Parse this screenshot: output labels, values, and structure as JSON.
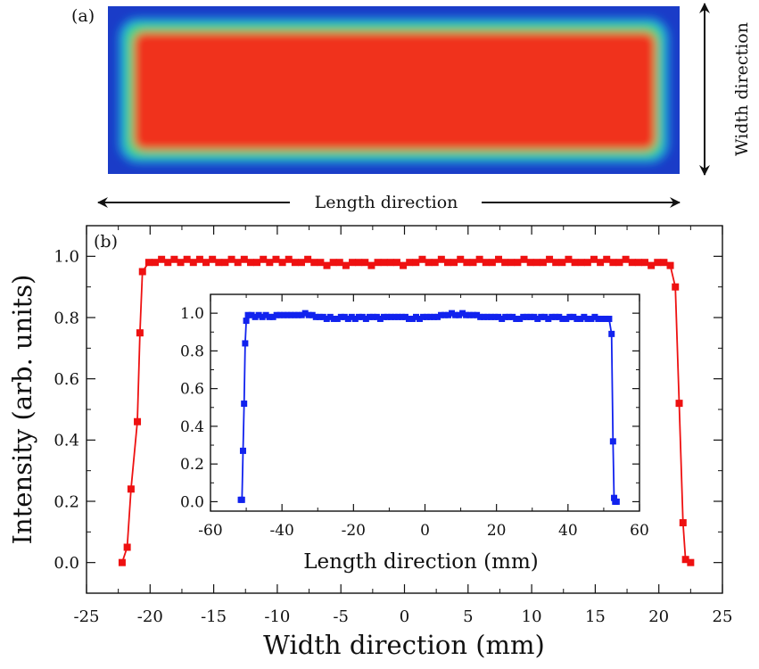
{
  "panel_a": {
    "label": "(a)",
    "length_direction": "Length direction",
    "width_direction": "Width direction",
    "colors": {
      "core": "#f0321c",
      "halo": "#3fd87a",
      "edge": "#1aa5d8",
      "background": "#1a3cc8"
    }
  },
  "chart_data": [
    {
      "type": "line",
      "panel_label": "(b)",
      "title": "",
      "xlabel": "Width direction (mm)",
      "ylabel": "Intensity (arb. units)",
      "xlim": [
        -25,
        25
      ],
      "ylim": [
        -0.1,
        1.1
      ],
      "xticks": [
        -25,
        -20,
        -15,
        -10,
        -5,
        0,
        5,
        10,
        15,
        20,
        25
      ],
      "yticks": [
        0.0,
        0.2,
        0.4,
        0.6,
        0.8,
        1.0
      ],
      "ytick_labels": [
        "0.0",
        "0.2",
        "0.4",
        "0.6",
        "0.8",
        "1.0"
      ],
      "marker": "square",
      "color": "#ee1111",
      "series": [
        {
          "x": [
            -22.2,
            -21.8,
            -21.5,
            -21.0,
            -20.8,
            -20.6,
            -20.1,
            -19.6,
            -19.1,
            -18.6,
            -18.1,
            -17.6,
            -17.1,
            -16.6,
            -16.1,
            -15.6,
            -15.1,
            -14.6,
            -14.1,
            -13.6,
            -13.1,
            -12.6,
            -12.1,
            -11.6,
            -11.1,
            -10.6,
            -10.1,
            -9.6,
            -9.1,
            -8.6,
            -8.1,
            -7.6,
            -7.1,
            -6.6,
            -6.1,
            -5.6,
            -5.1,
            -4.6,
            -4.1,
            -3.6,
            -3.1,
            -2.6,
            -2.1,
            -1.6,
            -1.1,
            -0.6,
            -0.1,
            0.4,
            0.9,
            1.4,
            1.9,
            2.4,
            2.9,
            3.4,
            3.9,
            4.4,
            4.9,
            5.4,
            5.9,
            6.4,
            6.9,
            7.4,
            7.9,
            8.4,
            8.9,
            9.4,
            9.9,
            10.4,
            10.9,
            11.4,
            11.9,
            12.4,
            12.9,
            13.4,
            13.9,
            14.4,
            14.9,
            15.4,
            15.9,
            16.4,
            16.9,
            17.4,
            17.9,
            18.4,
            18.9,
            19.4,
            19.9,
            20.4,
            20.9,
            21.3,
            21.6,
            21.9,
            22.1,
            22.5
          ],
          "y": [
            0.0,
            0.05,
            0.24,
            0.46,
            0.75,
            0.95,
            0.98,
            0.98,
            0.99,
            0.98,
            0.99,
            0.98,
            0.99,
            0.98,
            0.99,
            0.98,
            0.99,
            0.98,
            0.98,
            0.99,
            0.98,
            0.99,
            0.98,
            0.98,
            0.99,
            0.98,
            0.99,
            0.98,
            0.99,
            0.98,
            0.98,
            0.99,
            0.98,
            0.98,
            0.97,
            0.98,
            0.98,
            0.97,
            0.98,
            0.98,
            0.98,
            0.97,
            0.98,
            0.98,
            0.98,
            0.98,
            0.97,
            0.98,
            0.98,
            0.99,
            0.98,
            0.98,
            0.99,
            0.98,
            0.98,
            0.99,
            0.98,
            0.98,
            0.99,
            0.98,
            0.98,
            0.99,
            0.98,
            0.98,
            0.98,
            0.99,
            0.98,
            0.98,
            0.98,
            0.99,
            0.98,
            0.98,
            0.99,
            0.98,
            0.98,
            0.98,
            0.99,
            0.98,
            0.99,
            0.98,
            0.98,
            0.99,
            0.98,
            0.98,
            0.98,
            0.97,
            0.98,
            0.98,
            0.97,
            0.9,
            0.52,
            0.13,
            0.01,
            0.0
          ]
        }
      ]
    },
    {
      "type": "line",
      "title": "",
      "xlabel": "Length direction (mm)",
      "ylabel": "",
      "xlim": [
        -60,
        60
      ],
      "ylim": [
        -0.05,
        1.1
      ],
      "xticks": [
        -60,
        -40,
        -20,
        0,
        20,
        40,
        60
      ],
      "yticks": [
        0.0,
        0.2,
        0.4,
        0.6,
        0.8,
        1.0
      ],
      "ytick_labels": [
        "0.0",
        "0.2",
        "0.4",
        "0.6",
        "0.8",
        "1.0"
      ],
      "marker": "square",
      "color": "#1122ee",
      "series": [
        {
          "x": [
            -51.5,
            -51.2,
            -50.9,
            -50.6,
            -50.3,
            -50.0,
            -49.5,
            -48.5,
            -47.5,
            -46.5,
            -45.5,
            -44.5,
            -43.5,
            -42.5,
            -41.5,
            -40.5,
            -39.5,
            -38.5,
            -37.5,
            -36.5,
            -35.5,
            -34.5,
            -33.5,
            -32.5,
            -31.5,
            -30.5,
            -29.5,
            -28.5,
            -27.5,
            -26.5,
            -25.5,
            -24.5,
            -23.5,
            -22.5,
            -21.5,
            -20.5,
            -19.5,
            -18.5,
            -17.5,
            -16.5,
            -15.5,
            -14.5,
            -13.5,
            -12.5,
            -11.5,
            -10.5,
            -9.5,
            -8.5,
            -7.5,
            -6.5,
            -5.5,
            -4.5,
            -3.5,
            -2.5,
            -1.5,
            -0.5,
            0.5,
            1.5,
            2.5,
            3.5,
            4.5,
            5.5,
            6.5,
            7.5,
            8.5,
            9.5,
            10.5,
            11.5,
            12.5,
            13.5,
            14.5,
            15.5,
            16.5,
            17.5,
            18.5,
            19.5,
            20.5,
            21.5,
            22.5,
            23.5,
            24.5,
            25.5,
            26.5,
            27.5,
            28.5,
            29.5,
            30.5,
            31.5,
            32.5,
            33.5,
            34.5,
            35.5,
            36.5,
            37.5,
            38.5,
            39.5,
            40.5,
            41.5,
            42.5,
            43.5,
            44.5,
            45.5,
            46.5,
            47.5,
            48.5,
            49.5,
            50.5,
            51.5,
            52.2,
            52.6,
            52.9,
            53.2,
            53.6
          ],
          "y": [
            0.01,
            0.01,
            0.27,
            0.52,
            0.84,
            0.96,
            0.99,
            0.99,
            0.98,
            0.99,
            0.98,
            0.99,
            0.98,
            0.98,
            0.99,
            0.99,
            0.99,
            0.99,
            0.99,
            0.99,
            0.99,
            0.99,
            1.0,
            0.99,
            0.99,
            0.98,
            0.98,
            0.98,
            0.97,
            0.98,
            0.97,
            0.97,
            0.98,
            0.98,
            0.97,
            0.98,
            0.97,
            0.98,
            0.98,
            0.97,
            0.98,
            0.98,
            0.98,
            0.97,
            0.98,
            0.98,
            0.98,
            0.98,
            0.98,
            0.98,
            0.98,
            0.97,
            0.97,
            0.98,
            0.97,
            0.98,
            0.98,
            0.98,
            0.98,
            0.98,
            0.99,
            0.99,
            0.99,
            1.0,
            0.99,
            0.99,
            1.0,
            0.99,
            0.99,
            0.99,
            0.99,
            0.98,
            0.98,
            0.98,
            0.98,
            0.98,
            0.98,
            0.97,
            0.98,
            0.98,
            0.98,
            0.97,
            0.97,
            0.98,
            0.98,
            0.98,
            0.98,
            0.97,
            0.98,
            0.98,
            0.97,
            0.98,
            0.98,
            0.98,
            0.97,
            0.97,
            0.98,
            0.98,
            0.97,
            0.97,
            0.98,
            0.97,
            0.97,
            0.98,
            0.97,
            0.97,
            0.97,
            0.97,
            0.89,
            0.32,
            0.02,
            0.0,
            0.0
          ]
        }
      ]
    }
  ]
}
